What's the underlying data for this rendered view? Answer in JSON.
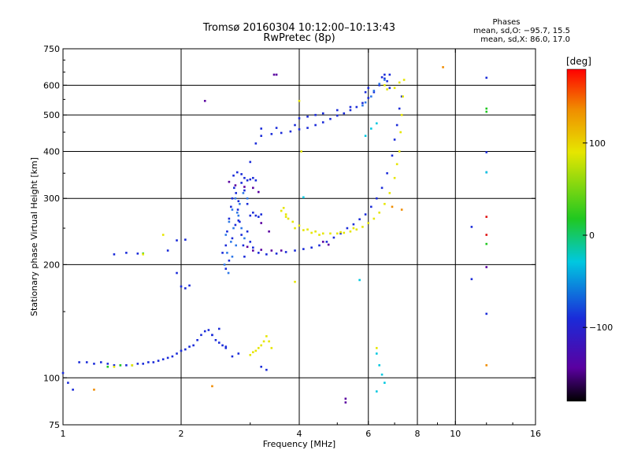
{
  "chart_data": {
    "type": "scatter",
    "title": "Tromsø 20160304 10:12:00–10:13:43",
    "subtitle": "RwPretec (8p)",
    "stats": {
      "heading": "Phases",
      "line_o": "mean, sd,O: −95.7, 15.5",
      "line_x": "mean, sd,X:  86.0, 17.0"
    },
    "xlabel": "Frequency [MHz]",
    "ylabel": "Stationary phase Virtual Height [km]",
    "x_scale": "log",
    "y_scale": "log",
    "xlim": [
      1,
      16
    ],
    "ylim": [
      75,
      750
    ],
    "x_ticks": [
      1,
      2,
      4,
      6,
      8,
      10,
      16
    ],
    "x_tick_labels": [
      "1",
      "2",
      "4",
      "6",
      "8",
      "10",
      "16"
    ],
    "y_ticks": [
      75,
      100,
      200,
      300,
      400,
      500,
      600,
      750
    ],
    "y_tick_labels": [
      "75",
      "100",
      "200",
      "300",
      "400",
      "500",
      "600",
      "750"
    ],
    "x_gridlines": [
      2,
      4,
      6,
      8,
      10
    ],
    "y_gridlines": [
      100,
      200,
      300,
      400,
      500,
      600
    ],
    "grid": true,
    "colorbar": {
      "label": "[deg]",
      "range": [
        -180,
        180
      ],
      "ticks": [
        100,
        0,
        -100
      ],
      "tick_labels": [
        "100",
        "0",
        "−100"
      ]
    },
    "series": [
      {
        "phase": -100,
        "color": "#1a2bd9",
        "points": [
          [
            1.0,
            103
          ],
          [
            1.03,
            97
          ],
          [
            1.06,
            93
          ],
          [
            1.1,
            110
          ],
          [
            1.15,
            110
          ],
          [
            1.2,
            109
          ],
          [
            1.25,
            110
          ],
          [
            1.3,
            109
          ],
          [
            1.35,
            108
          ],
          [
            1.4,
            108
          ],
          [
            1.45,
            108
          ],
          [
            1.5,
            108
          ],
          [
            1.55,
            109
          ],
          [
            1.6,
            109
          ],
          [
            1.65,
            110
          ],
          [
            1.7,
            110
          ],
          [
            1.75,
            111
          ],
          [
            1.8,
            112
          ],
          [
            1.85,
            113
          ],
          [
            1.9,
            114
          ],
          [
            1.95,
            116
          ],
          [
            2.0,
            118
          ],
          [
            2.05,
            119
          ],
          [
            2.1,
            121
          ],
          [
            2.15,
            122
          ],
          [
            2.2,
            126
          ],
          [
            2.25,
            130
          ],
          [
            2.3,
            133
          ],
          [
            2.35,
            134
          ],
          [
            2.4,
            130
          ],
          [
            2.45,
            126
          ],
          [
            2.5,
            124
          ],
          [
            2.55,
            122
          ],
          [
            2.6,
            121
          ],
          [
            1.35,
            213
          ],
          [
            1.45,
            215
          ],
          [
            1.55,
            214
          ],
          [
            1.85,
            218
          ],
          [
            1.95,
            232
          ],
          [
            2.05,
            233
          ],
          [
            1.95,
            190
          ],
          [
            2.0,
            175
          ],
          [
            2.05,
            173
          ],
          [
            2.1,
            176
          ],
          [
            2.55,
            215
          ],
          [
            2.6,
            225
          ],
          [
            2.62,
            245
          ],
          [
            2.65,
            265
          ],
          [
            2.68,
            285
          ],
          [
            2.7,
            300
          ],
          [
            2.73,
            320
          ],
          [
            2.76,
            310
          ],
          [
            2.79,
            280
          ],
          [
            2.82,
            260
          ],
          [
            2.85,
            240
          ],
          [
            2.88,
            225
          ],
          [
            2.9,
            210
          ],
          [
            2.6,
            195
          ],
          [
            2.65,
            205
          ],
          [
            2.7,
            235
          ],
          [
            2.75,
            255
          ],
          [
            2.8,
            295
          ],
          [
            2.85,
            330
          ],
          [
            2.9,
            315
          ],
          [
            2.95,
            290
          ],
          [
            3.0,
            270
          ],
          [
            3.05,
            275
          ],
          [
            3.1,
            270
          ],
          [
            3.15,
            268
          ],
          [
            3.2,
            272
          ],
          [
            2.72,
            345
          ],
          [
            2.78,
            352
          ],
          [
            2.85,
            348
          ],
          [
            2.9,
            340
          ],
          [
            2.95,
            335
          ],
          [
            3.0,
            337
          ],
          [
            3.05,
            340
          ],
          [
            3.1,
            335
          ],
          [
            2.8,
            262
          ],
          [
            2.95,
            245
          ],
          [
            3.0,
            230
          ],
          [
            3.05,
            222
          ],
          [
            3.15,
            215
          ],
          [
            3.3,
            213
          ],
          [
            3.5,
            214
          ],
          [
            3.7,
            216
          ],
          [
            3.9,
            218
          ],
          [
            4.1,
            220
          ],
          [
            4.3,
            222
          ],
          [
            4.5,
            225
          ],
          [
            4.7,
            230
          ],
          [
            4.9,
            236
          ],
          [
            5.1,
            242
          ],
          [
            5.3,
            250
          ],
          [
            5.5,
            256
          ],
          [
            5.7,
            264
          ],
          [
            5.9,
            272
          ],
          [
            6.1,
            285
          ],
          [
            6.3,
            300
          ],
          [
            6.5,
            320
          ],
          [
            6.7,
            350
          ],
          [
            6.9,
            390
          ],
          [
            7.0,
            430
          ],
          [
            7.1,
            470
          ],
          [
            7.2,
            520
          ],
          [
            7.3,
            560
          ],
          [
            3.0,
            375
          ],
          [
            3.1,
            420
          ],
          [
            3.2,
            440
          ],
          [
            3.4,
            445
          ],
          [
            3.6,
            448
          ],
          [
            3.8,
            452
          ],
          [
            4.0,
            458
          ],
          [
            4.2,
            462
          ],
          [
            4.4,
            470
          ],
          [
            4.6,
            478
          ],
          [
            4.8,
            488
          ],
          [
            5.0,
            498
          ],
          [
            5.2,
            505
          ],
          [
            5.4,
            515
          ],
          [
            5.6,
            525
          ],
          [
            5.8,
            538
          ],
          [
            6.0,
            555
          ],
          [
            6.2,
            575
          ],
          [
            6.4,
            600
          ],
          [
            6.6,
            625
          ],
          [
            6.8,
            640
          ],
          [
            4.0,
            490
          ],
          [
            4.2,
            495
          ],
          [
            4.4,
            500
          ],
          [
            4.6,
            505
          ],
          [
            5.0,
            515
          ],
          [
            5.4,
            525
          ],
          [
            3.2,
            460
          ],
          [
            3.5,
            462
          ],
          [
            3.9,
            470
          ],
          [
            2.4,
            130
          ],
          [
            2.5,
            135
          ],
          [
            2.6,
            120
          ],
          [
            2.7,
            114
          ],
          [
            2.8,
            116
          ],
          [
            3.2,
            107
          ],
          [
            3.3,
            105
          ],
          [
            6.5,
            630
          ],
          [
            6.6,
            640
          ],
          [
            6.7,
            615
          ],
          [
            6.8,
            590
          ],
          [
            5.9,
            575
          ],
          [
            6.0,
            590
          ],
          [
            12.0,
            628
          ],
          [
            12.0,
            398
          ],
          [
            12.0,
            352
          ],
          [
            12.0,
            148
          ],
          [
            11.0,
            252
          ],
          [
            11.0,
            183
          ]
        ]
      },
      {
        "phase": -100,
        "color": "#2f78e8",
        "points": [
          [
            2.6,
            240
          ],
          [
            2.65,
            260
          ],
          [
            2.7,
            280
          ],
          [
            2.75,
            300
          ],
          [
            2.8,
            270
          ],
          [
            2.85,
            250
          ],
          [
            2.9,
            235
          ],
          [
            2.62,
            215
          ],
          [
            2.68,
            230
          ],
          [
            2.72,
            250
          ],
          [
            2.78,
            275
          ],
          [
            2.82,
            290
          ],
          [
            2.88,
            310
          ],
          [
            2.95,
            300
          ],
          [
            2.58,
            200
          ],
          [
            2.64,
            190
          ],
          [
            2.7,
            210
          ],
          [
            2.76,
            225
          ],
          [
            5.8,
            530
          ],
          [
            5.9,
            540
          ],
          [
            6.1,
            560
          ],
          [
            6.2,
            580
          ],
          [
            6.4,
            605
          ],
          [
            6.6,
            620
          ]
        ]
      },
      {
        "phase": -150,
        "color": "#5a00a0",
        "points": [
          [
            2.65,
            332
          ],
          [
            2.75,
            325
          ],
          [
            2.9,
            322
          ],
          [
            3.05,
            320
          ],
          [
            3.15,
            312
          ],
          [
            2.95,
            223
          ],
          [
            3.05,
            218
          ],
          [
            3.2,
            219
          ],
          [
            3.4,
            218
          ],
          [
            3.6,
            218
          ],
          [
            3.2,
            258
          ],
          [
            3.35,
            245
          ],
          [
            4.6,
            230
          ],
          [
            4.75,
            226
          ],
          [
            3.45,
            640
          ],
          [
            3.5,
            640
          ],
          [
            2.3,
            545
          ],
          [
            5.25,
            88
          ],
          [
            5.25,
            86
          ],
          [
            12.0,
            197
          ]
        ]
      },
      {
        "phase": 30,
        "color": "#00c8e0",
        "points": [
          [
            5.7,
            182
          ],
          [
            4.1,
            302
          ],
          [
            6.3,
            116
          ],
          [
            6.4,
            108
          ],
          [
            6.5,
            102
          ],
          [
            6.6,
            97
          ],
          [
            6.3,
            92
          ],
          [
            5.9,
            440
          ],
          [
            6.1,
            460
          ],
          [
            6.3,
            475
          ],
          [
            12.0,
            352
          ]
        ]
      },
      {
        "phase": 60,
        "color": "#20c820",
        "points": [
          [
            1.3,
            107
          ],
          [
            1.4,
            108
          ],
          [
            1.5,
            108
          ],
          [
            1.6,
            214
          ],
          [
            12.0,
            227
          ],
          [
            12.0,
            520
          ],
          [
            12.0,
            510
          ]
        ]
      },
      {
        "phase": 100,
        "color": "#e6e600",
        "points": [
          [
            3.65,
            283
          ],
          [
            3.7,
            272
          ],
          [
            3.75,
            265
          ],
          [
            3.85,
            260
          ],
          [
            4.0,
            254
          ],
          [
            4.2,
            248
          ],
          [
            4.4,
            245
          ],
          [
            4.6,
            242
          ],
          [
            4.8,
            242
          ],
          [
            5.0,
            242
          ],
          [
            5.2,
            243
          ],
          [
            5.4,
            245
          ],
          [
            5.6,
            248
          ],
          [
            5.8,
            252
          ],
          [
            6.0,
            258
          ],
          [
            6.2,
            265
          ],
          [
            6.4,
            275
          ],
          [
            6.6,
            290
          ],
          [
            6.8,
            310
          ],
          [
            7.0,
            340
          ],
          [
            7.1,
            370
          ],
          [
            7.2,
            400
          ],
          [
            7.25,
            450
          ],
          [
            7.3,
            500
          ],
          [
            7.35,
            560
          ],
          [
            7.4,
            620
          ],
          [
            3.9,
            250
          ],
          [
            4.1,
            247
          ],
          [
            4.3,
            243
          ],
          [
            4.5,
            240
          ],
          [
            5.1,
            244
          ],
          [
            5.5,
            250
          ],
          [
            3.6,
            278
          ],
          [
            3.7,
            268
          ],
          [
            3.1,
            118
          ],
          [
            3.15,
            120
          ],
          [
            3.2,
            122
          ],
          [
            3.25,
            125
          ],
          [
            3.3,
            129
          ],
          [
            3.35,
            125
          ],
          [
            3.4,
            120
          ],
          [
            3.0,
            115
          ],
          [
            3.05,
            117
          ],
          [
            1.35,
            107
          ],
          [
            1.5,
            108
          ],
          [
            1.8,
            240
          ],
          [
            4.0,
            545
          ],
          [
            4.05,
            400
          ],
          [
            7.0,
            590
          ],
          [
            7.2,
            610
          ],
          [
            6.6,
            600
          ],
          [
            6.7,
            585
          ],
          [
            3.9,
            180
          ],
          [
            6.3,
            120
          ],
          [
            1.6,
            213
          ]
        ]
      },
      {
        "phase": 120,
        "color": "#f08c00",
        "points": [
          [
            9.3,
            670
          ],
          [
            12.0,
            108
          ],
          [
            7.3,
            280
          ],
          [
            6.9,
            285
          ],
          [
            1.2,
            93
          ],
          [
            2.4,
            95
          ]
        ]
      },
      {
        "phase": 160,
        "color": "#e01010",
        "points": [
          [
            12.0,
            268
          ],
          [
            12.0,
            240
          ]
        ]
      }
    ]
  }
}
